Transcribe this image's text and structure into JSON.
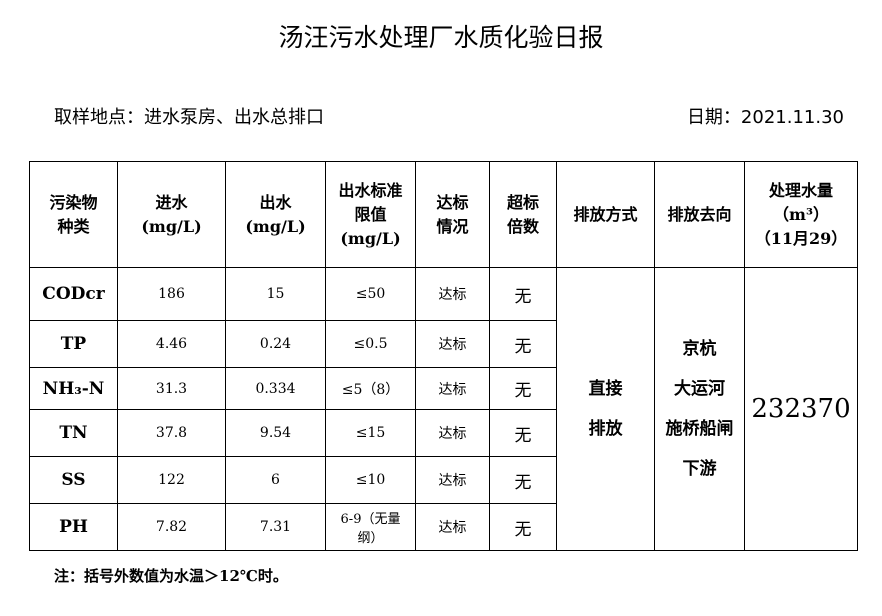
{
  "title": "汤汪污水处理厂水质化验日报",
  "location": "取样地点：进水泵房、出水总排口",
  "date": "日期：2021.11.30",
  "headers": [
    "污染物种类",
    "进水(mg/L)",
    "出水(mg/L)",
    "出水标准限值(mg/L)",
    "达标情况",
    "超标倍数",
    "排放方式",
    "排放去向",
    "处理水量（m³）（11月29）"
  ],
  "header_lines": [
    [
      "污染物",
      "种类"
    ],
    [
      "进水",
      "(mg/L)"
    ],
    [
      "出水",
      "(mg/L)"
    ],
    [
      "出水标准",
      "限值",
      "(mg/L)"
    ],
    [
      "达标",
      "情况"
    ],
    [
      "超标",
      "倍数"
    ],
    [
      "排放方式"
    ],
    [
      "排放去向"
    ],
    [
      "处理水量",
      "（m³）",
      "（11月29）"
    ]
  ],
  "rows": [
    {
      "name": "CODcr",
      "in": "186",
      "out": "15",
      "limit": "≤50",
      "status": "达标",
      "exceed": "无"
    },
    {
      "name": "TP",
      "in": "4.46",
      "out": "0.24",
      "limit": "≤0.5",
      "status": "达标",
      "exceed": "无"
    },
    {
      "name": "NH₃-N",
      "in": "31.3",
      "out": "0.334",
      "limit": "≤5（8）",
      "status": "达标",
      "exceed": "无"
    },
    {
      "name": "TN",
      "in": "37.8",
      "out": "9.54",
      "limit": "≤15",
      "status": "达标",
      "exceed": "无"
    },
    {
      "name": "SS",
      "in": "122",
      "out": "6",
      "limit": "≤10",
      "status": "达标",
      "exceed": "无"
    },
    {
      "name": "PH",
      "in": "7.82",
      "out": "7.31",
      "limit": "6-9（无量纲）",
      "status": "达标",
      "exceed": "无"
    }
  ],
  "discharge_method": [
    "直接",
    "排放"
  ],
  "discharge_dest": [
    "京杭",
    "大运河",
    "施桥船闸",
    "下游"
  ],
  "volume": "232370",
  "note": "注：括号外数值为水温＞12℃时。"
}
